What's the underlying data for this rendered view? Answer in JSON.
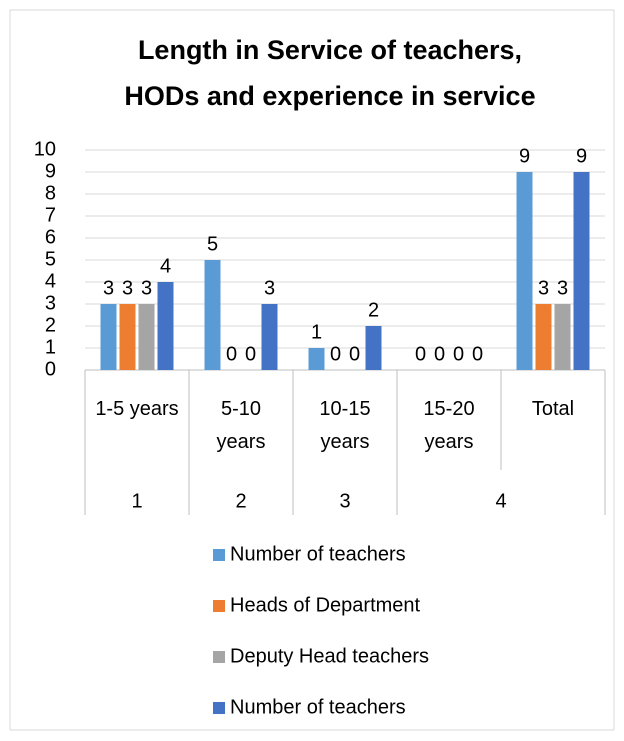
{
  "chart_data": {
    "type": "bar",
    "title": [
      "Length in Service of teachers,",
      "HODs and experience in service"
    ],
    "categories": [
      "1-5 years",
      "5-10 years",
      "10-15 years",
      "15-20 years",
      "Total"
    ],
    "groups": [
      {
        "label": "1",
        "count": 1
      },
      {
        "label": "2",
        "count": 1
      },
      {
        "label": "3",
        "count": 1
      },
      {
        "label": "4",
        "count": 2
      }
    ],
    "series": [
      {
        "name": "Number of teachers",
        "color": "#5b9bd5",
        "values": [
          3,
          5,
          1,
          0,
          9
        ]
      },
      {
        "name": "Heads of Department",
        "color": "#ed7d31",
        "values": [
          3,
          0,
          0,
          0,
          3
        ]
      },
      {
        "name": "Deputy Head teachers",
        "color": "#a5a5a5",
        "values": [
          3,
          0,
          0,
          0,
          3
        ]
      },
      {
        "name": "Number of teachers",
        "color": "#4472c4",
        "values": [
          4,
          3,
          2,
          0,
          9
        ]
      }
    ],
    "ylim": [
      0,
      10
    ],
    "yticks": [
      0,
      1,
      2,
      3,
      4,
      5,
      6,
      7,
      8,
      9,
      10
    ],
    "grid": true,
    "legend": "bottom"
  }
}
